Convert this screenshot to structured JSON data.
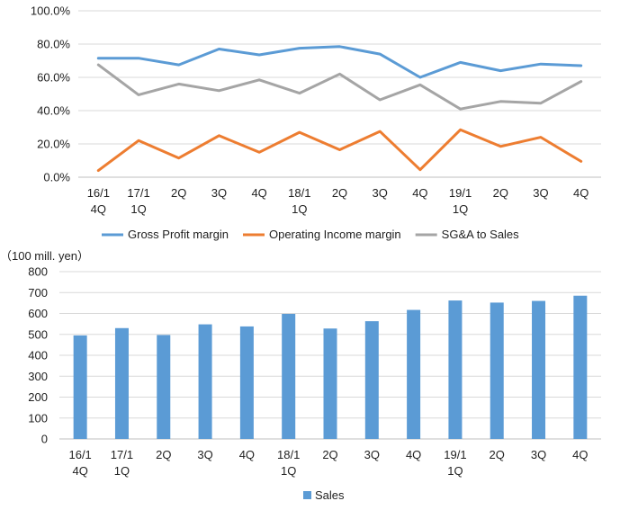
{
  "chart_data": [
    {
      "type": "line",
      "categories": [
        [
          "16/1",
          "4Q"
        ],
        [
          "17/1",
          "1Q"
        ],
        [
          "2Q"
        ],
        [
          "3Q"
        ],
        [
          "4Q"
        ],
        [
          "18/1",
          "1Q"
        ],
        [
          "2Q"
        ],
        [
          "3Q"
        ],
        [
          "4Q"
        ],
        [
          "19/1",
          "1Q"
        ],
        [
          "2Q"
        ],
        [
          "3Q"
        ],
        [
          "4Q"
        ]
      ],
      "y_tick_labels": [
        "0.0%",
        "20.0%",
        "40.0%",
        "60.0%",
        "80.0%",
        "100.0%"
      ],
      "ylim": [
        0,
        100
      ],
      "y_unit": "%",
      "grid": true,
      "legend_position": "bottom",
      "series": [
        {
          "name": "Gross Profit margin",
          "color": "#5b9bd5",
          "values": [
            71.5,
            71.5,
            67.5,
            77,
            73.5,
            77.5,
            78.5,
            74,
            60,
            69,
            64,
            68,
            67
          ]
        },
        {
          "name": "Operating Income margin",
          "color": "#ed7d31",
          "values": [
            4,
            22,
            11.5,
            25,
            15,
            27,
            16.5,
            27.5,
            4.5,
            28.5,
            18.5,
            24,
            9.5
          ]
        },
        {
          "name": "SG&A to Sales",
          "color": "#a5a5a5",
          "values": [
            67.5,
            49.5,
            56,
            52,
            58.5,
            50.5,
            62,
            46.5,
            55.5,
            41,
            45.5,
            44.5,
            57.5
          ]
        }
      ]
    },
    {
      "type": "bar",
      "unit_label": "（100 mill. yen）",
      "categories": [
        [
          "16/1",
          "4Q"
        ],
        [
          "17/1",
          "1Q"
        ],
        [
          "2Q"
        ],
        [
          "3Q"
        ],
        [
          "4Q"
        ],
        [
          "18/1",
          "1Q"
        ],
        [
          "2Q"
        ],
        [
          "3Q"
        ],
        [
          "4Q"
        ],
        [
          "19/1",
          "1Q"
        ],
        [
          "2Q"
        ],
        [
          "3Q"
        ],
        [
          "4Q"
        ]
      ],
      "y_tick_labels": [
        "0",
        "100",
        "200",
        "300",
        "400",
        "500",
        "600",
        "700",
        "800"
      ],
      "ylim": [
        0,
        800
      ],
      "grid": true,
      "legend_position": "bottom",
      "series": [
        {
          "name": "Sales",
          "color": "#5b9bd5",
          "values": [
            495,
            530,
            497,
            548,
            538,
            598,
            528,
            563,
            617,
            662,
            652,
            660,
            685
          ]
        }
      ]
    }
  ]
}
